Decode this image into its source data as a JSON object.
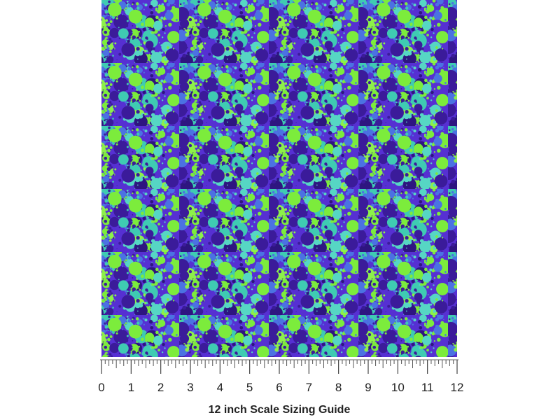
{
  "ruler": {
    "labels": [
      0,
      1,
      2,
      3,
      4,
      5,
      6,
      7,
      8,
      9,
      10,
      11,
      12
    ]
  },
  "caption": "12 inch Scale Sizing Guide"
}
